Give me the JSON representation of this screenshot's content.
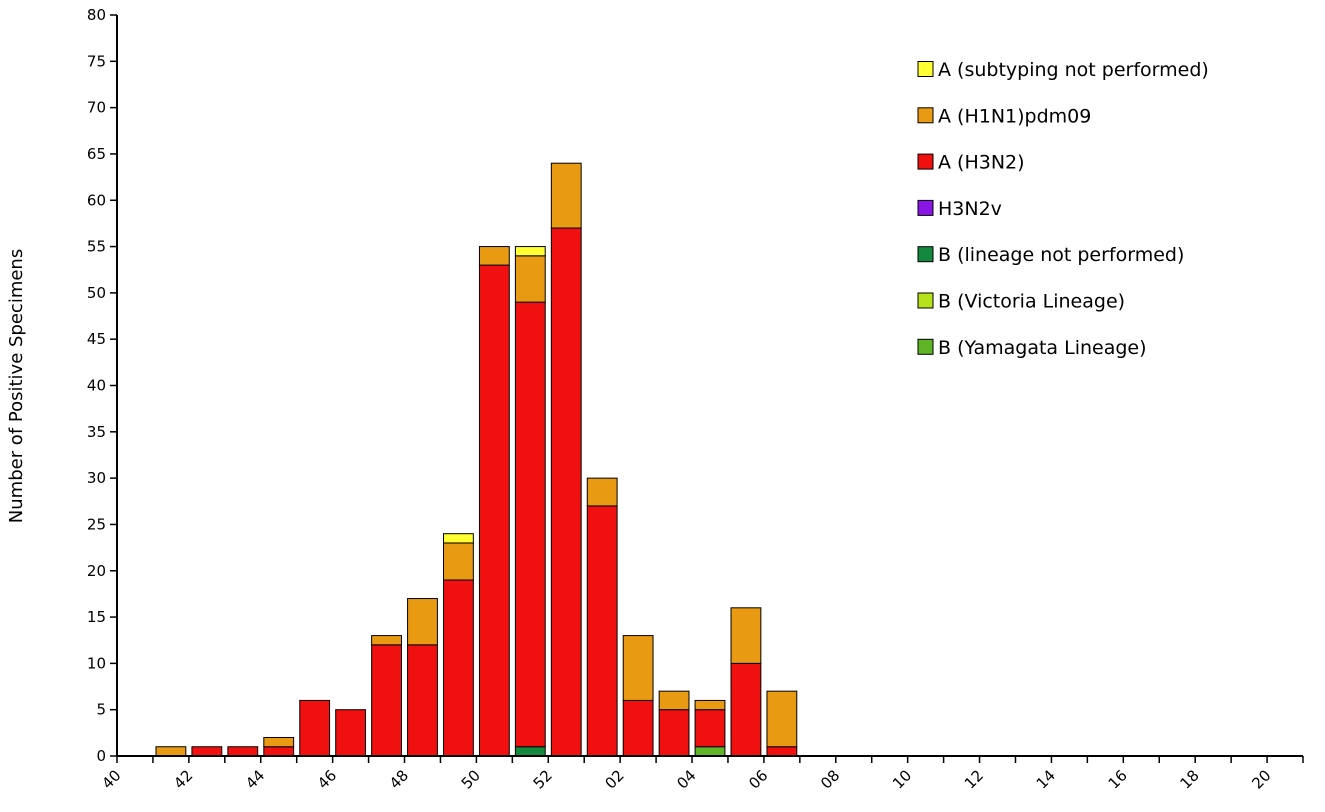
{
  "chart_data": {
    "type": "bar",
    "stacked": true,
    "title": "",
    "xlabel": "",
    "ylabel": "Number of Positive Specimens",
    "ylim": [
      0,
      80
    ],
    "ytick_step": 5,
    "grid": false,
    "legend_position": "top-right",
    "categories": [
      "40",
      "41",
      "42",
      "43",
      "44",
      "45",
      "46",
      "47",
      "48",
      "49",
      "50",
      "51",
      "52",
      "01",
      "02",
      "03",
      "04",
      "05",
      "06",
      "07",
      "08",
      "09",
      "10",
      "11",
      "12",
      "13",
      "14",
      "15",
      "16",
      "17",
      "18",
      "19",
      "20"
    ],
    "x_tick_labels": [
      "40",
      "42",
      "44",
      "46",
      "48",
      "50",
      "52",
      "02",
      "04",
      "06",
      "08",
      "10",
      "12",
      "14",
      "16",
      "18",
      "20"
    ],
    "series": [
      {
        "name": "A (subtyping not performed)",
        "color": "#ffff33",
        "values": [
          0,
          0,
          0,
          0,
          0,
          0,
          0,
          0,
          0,
          1,
          0,
          1,
          0,
          0,
          0,
          0,
          0,
          0,
          0,
          0,
          0,
          0,
          0,
          0,
          0,
          0,
          0,
          0,
          0,
          0,
          0,
          0,
          0
        ]
      },
      {
        "name": "A (H1N1)pdm09",
        "color": "#e89a13",
        "values": [
          0,
          1,
          0,
          0,
          1,
          0,
          0,
          1,
          5,
          4,
          2,
          5,
          7,
          3,
          7,
          2,
          1,
          6,
          6,
          0,
          0,
          0,
          0,
          0,
          0,
          0,
          0,
          0,
          0,
          0,
          0,
          0,
          0
        ]
      },
      {
        "name": "A (H3N2)",
        "color": "#f01010",
        "values": [
          0,
          0,
          1,
          1,
          1,
          6,
          5,
          12,
          12,
          19,
          53,
          48,
          57,
          27,
          6,
          5,
          4,
          10,
          1,
          0,
          0,
          0,
          0,
          0,
          0,
          0,
          0,
          0,
          0,
          0,
          0,
          0,
          0
        ]
      },
      {
        "name": "H3N2v",
        "color": "#8a16e6",
        "values": [
          0,
          0,
          0,
          0,
          0,
          0,
          0,
          0,
          0,
          0,
          0,
          0,
          0,
          0,
          0,
          0,
          0,
          0,
          0,
          0,
          0,
          0,
          0,
          0,
          0,
          0,
          0,
          0,
          0,
          0,
          0,
          0,
          0
        ]
      },
      {
        "name": "B (lineage not performed)",
        "color": "#12893c",
        "values": [
          0,
          0,
          0,
          0,
          0,
          0,
          0,
          0,
          0,
          0,
          0,
          1,
          0,
          0,
          0,
          0,
          0,
          0,
          0,
          0,
          0,
          0,
          0,
          0,
          0,
          0,
          0,
          0,
          0,
          0,
          0,
          0,
          0
        ]
      },
      {
        "name": "B (Victoria Lineage)",
        "color": "#b5e21a",
        "values": [
          0,
          0,
          0,
          0,
          0,
          0,
          0,
          0,
          0,
          0,
          0,
          0,
          0,
          0,
          0,
          0,
          0,
          0,
          0,
          0,
          0,
          0,
          0,
          0,
          0,
          0,
          0,
          0,
          0,
          0,
          0,
          0,
          0
        ]
      },
      {
        "name": "B (Yamagata Lineage)",
        "color": "#5fb526",
        "values": [
          0,
          0,
          0,
          0,
          0,
          0,
          0,
          0,
          0,
          0,
          0,
          0,
          0,
          0,
          0,
          0,
          1,
          0,
          0,
          0,
          0,
          0,
          0,
          0,
          0,
          0,
          0,
          0,
          0,
          0,
          0,
          0,
          0
        ]
      }
    ],
    "stack_order": [
      4,
      6,
      5,
      3,
      2,
      1,
      0
    ],
    "legend_order": [
      0,
      1,
      2,
      3,
      4,
      5,
      6
    ]
  }
}
